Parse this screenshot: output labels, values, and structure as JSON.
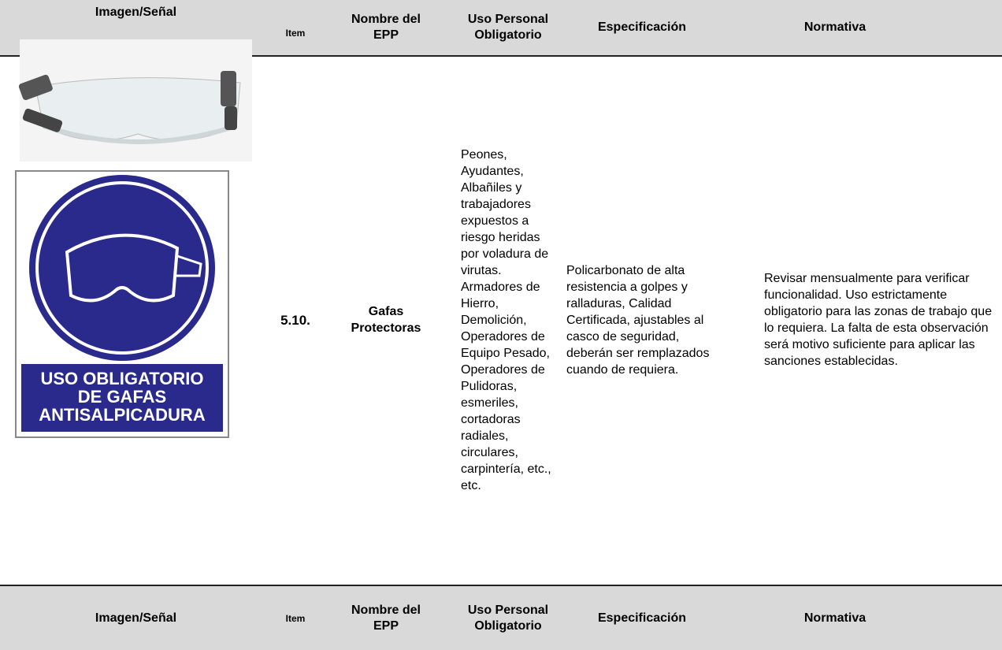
{
  "header": {
    "columns": [
      "Imagen/Señal",
      "Item",
      "Nombre del EPP",
      "Uso Personal Obligatorio",
      "Especificación",
      "Normativa"
    ]
  },
  "rows": [
    {
      "sign_text": [
        "USO OBLIGATORIO",
        "DE GAFAS",
        "ANTISALPICADURA"
      ],
      "item": "5.10.",
      "name": "Gafas Protectoras",
      "users": "Peones, Ayudantes, Albañiles y trabajadores expuestos a riesgo heridas por voladura de virutas. Armadores de Hierro, Demolición, Operadores de Equipo Pesado, Operadores de Pulidoras, esmeriles, cortadoras radiales, circulares, carpintería, etc., etc.",
      "specification": "Policarbonato de alta resistencia a golpes y ralladuras, Calidad Certificada, ajustables al casco de seguridad, deberán ser remplazados cuando de requiera.",
      "regulation": "Revisar mensualmente para verificar funcionalidad. Uso estrictamente obligatorio para las zonas de trabajo que lo requiera. La falta de esta observación será motivo suficiente para aplicar las sanciones establecidas."
    }
  ],
  "footer_header": {
    "columns": [
      "Imagen/Señal",
      "Item",
      "Nombre del EPP",
      "Uso Personal Obligatorio",
      "Especificación",
      "Normativa"
    ]
  }
}
